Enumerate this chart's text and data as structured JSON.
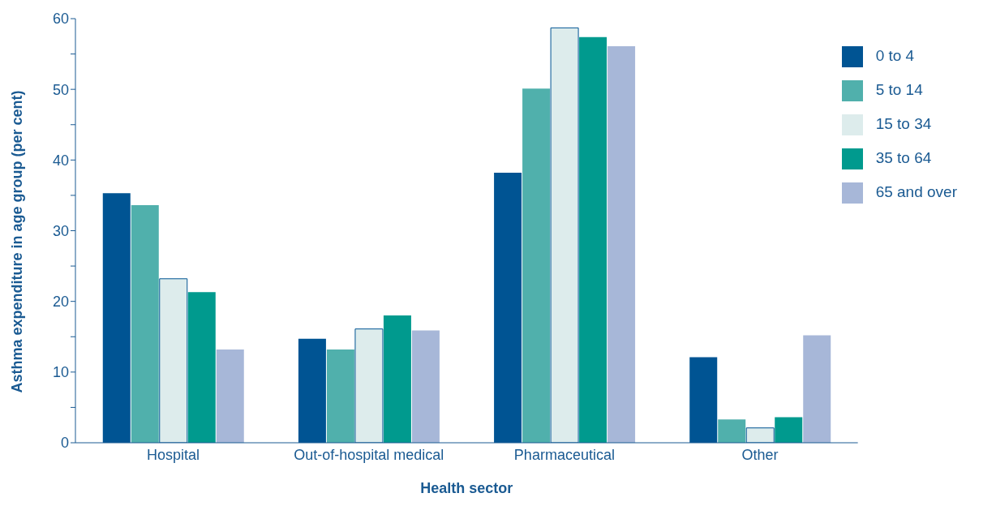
{
  "chart_data": {
    "type": "bar",
    "xlabel": "Health sector",
    "ylabel": "Asthma expenditure in age group (per cent)",
    "categories": [
      "Hospital",
      "Out-of-hospital medical",
      "Pharmaceutical",
      "Other"
    ],
    "series": [
      {
        "name": "0 to 4",
        "color": "#005493",
        "values": [
          35.3,
          14.7,
          38.2,
          12.1
        ]
      },
      {
        "name": "5 to 14",
        "color": "#50b0ac",
        "values": [
          33.6,
          13.2,
          50.1,
          3.3
        ]
      },
      {
        "name": "15 to 34",
        "color": "#ddecec",
        "values": [
          23.2,
          16.1,
          58.7,
          2.1
        ]
      },
      {
        "name": "35 to 64",
        "color": "#009a8e",
        "values": [
          21.3,
          18.0,
          57.4,
          3.6
        ]
      },
      {
        "name": "65 and over",
        "color": "#a7b7d8",
        "values": [
          13.2,
          15.9,
          56.1,
          15.2
        ]
      }
    ],
    "ylim": [
      0,
      60
    ],
    "yticks": [
      0,
      {
        "value": 5,
        "label": null
      },
      10,
      {
        "value": 15,
        "label": null
      },
      20,
      {
        "value": 25,
        "label": null
      },
      30,
      {
        "value": 35,
        "label": null
      },
      40,
      {
        "value": 45,
        "label": null
      },
      50,
      {
        "value": 55,
        "label": null
      },
      60
    ],
    "grid": false,
    "legend": "top right"
  }
}
